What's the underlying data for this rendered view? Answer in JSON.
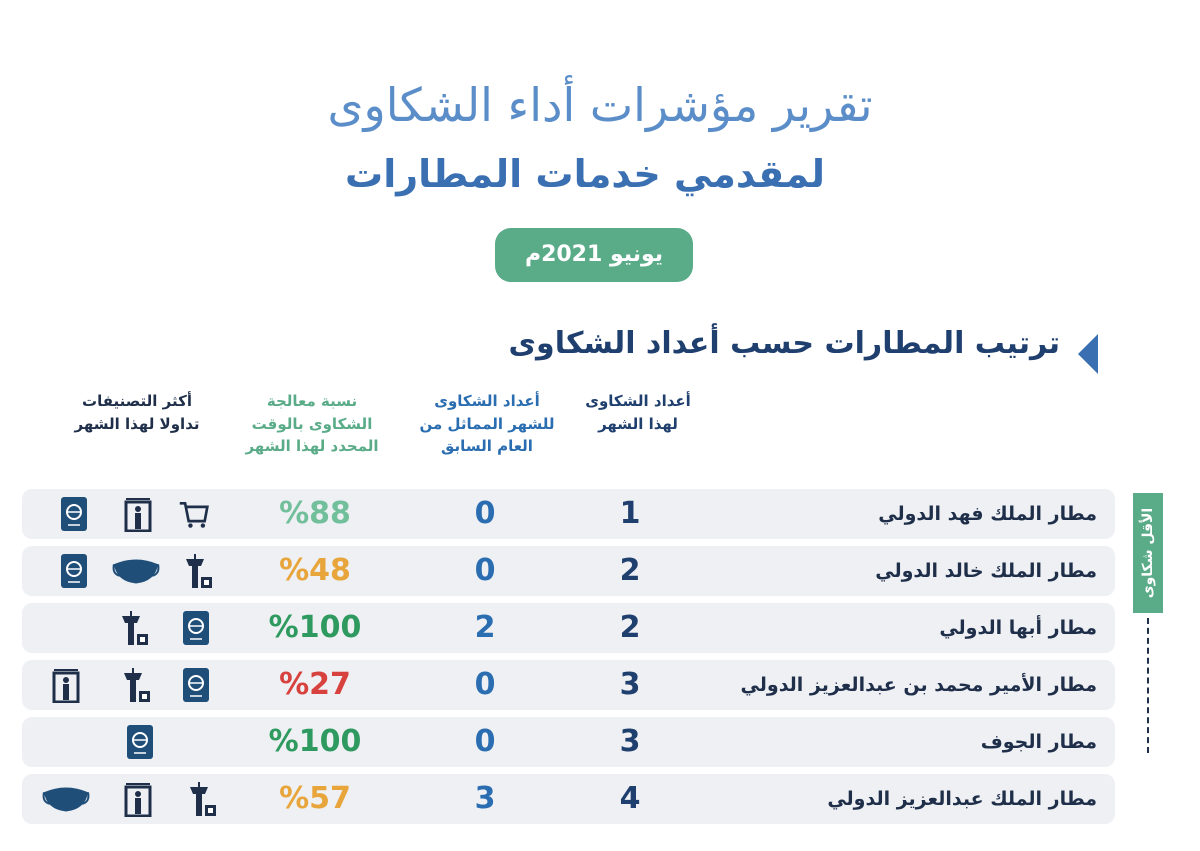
{
  "header": {
    "title": "تقرير مؤشرات أداء الشكاوى",
    "subtitle": "لمقدمي خدمات المطارات",
    "date": "يونيو 2021م"
  },
  "section": {
    "title": "ترتيب المطارات حسب أعداد الشكاوى"
  },
  "side_label": "الأقل شكاوى",
  "table": {
    "columns": [
      "أعداد الشكاوى\nلهذا الشهر",
      "أعداد الشكاوى\nللشهر المماثل من\nالعام السابق",
      "نسبة معالجة\nالشكاوى بالوقت\nالمحدد لهذا الشهر",
      "أكثر التصنيفات\nتداولا لهذا الشهر"
    ],
    "rows": [
      {
        "airport": "مطار الملك فهد الدولي",
        "complaints": 1,
        "previous_year": 0,
        "on_time_rate": "%88",
        "rate_color": "#72bf9b"
      },
      {
        "airport": "مطار الملك خالد الدولي",
        "complaints": 2,
        "previous_year": 0,
        "on_time_rate": "%48",
        "rate_color": "#e7a53b"
      },
      {
        "airport": "مطار أبها الدولي",
        "complaints": 2,
        "previous_year": 2,
        "on_time_rate": "%100",
        "rate_color": "#2f9a5f"
      },
      {
        "airport": "مطار الأمير محمد بن عبدالعزيز الدولي",
        "complaints": 3,
        "previous_year": 0,
        "on_time_rate": "%27",
        "rate_color": "#d8423e"
      },
      {
        "airport": "مطار الجوف",
        "complaints": 3,
        "previous_year": 0,
        "on_time_rate": "%100",
        "rate_color": "#2f9a5f"
      },
      {
        "airport": "مطار الملك عبدالعزيز الدولي",
        "complaints": 4,
        "previous_year": 3,
        "on_time_rate": "%57",
        "rate_color": "#e7a53b"
      }
    ]
  }
}
